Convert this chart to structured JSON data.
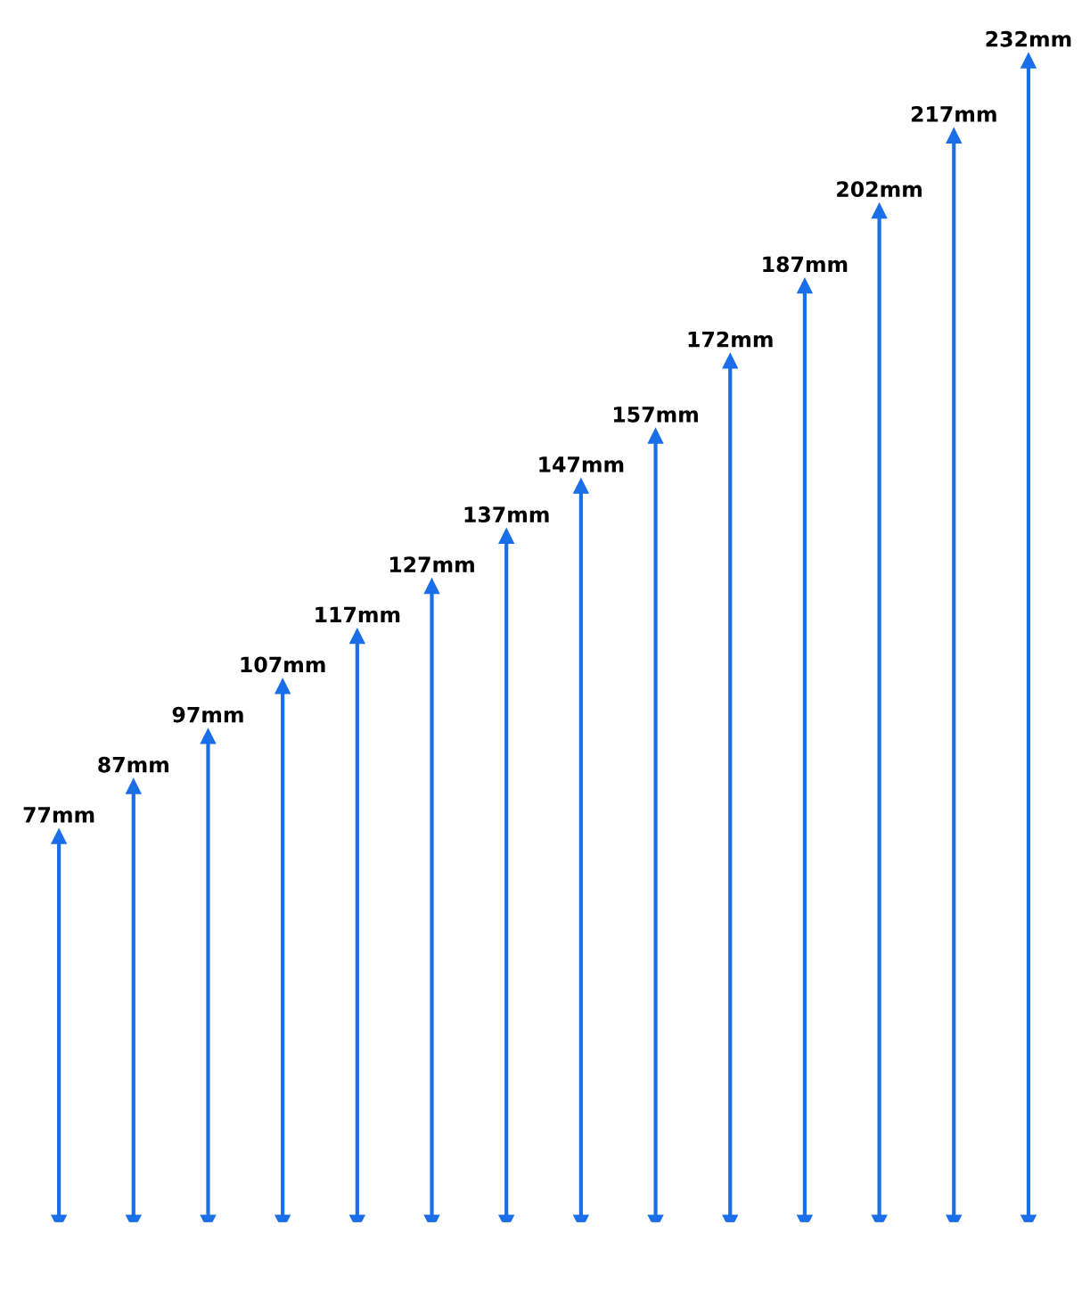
{
  "chart_data": {
    "type": "bar",
    "categories": [
      null,
      null,
      null,
      null,
      null,
      null,
      null,
      null,
      null,
      null,
      null,
      null,
      null,
      null
    ],
    "values": [
      77,
      87,
      97,
      107,
      117,
      127,
      137,
      147,
      157,
      172,
      187,
      202,
      217,
      232
    ],
    "value_labels": [
      "77mm",
      "87mm",
      "97mm",
      "107mm",
      "117mm",
      "127mm",
      "137mm",
      "147mm",
      "157mm",
      "172mm",
      "187mm",
      "202mm",
      "217mm",
      "232mm"
    ],
    "color": "#1a6fe8",
    "grid": false,
    "legend": false
  }
}
